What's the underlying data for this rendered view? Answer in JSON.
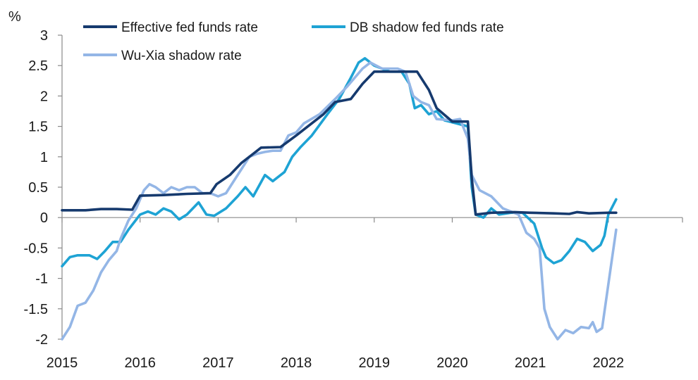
{
  "chart_data": {
    "type": "line",
    "title": "",
    "xlabel": "",
    "ylabel": "%",
    "xlim": [
      2015.0,
      2022.95
    ],
    "ylim": [
      -2,
      3
    ],
    "x_ticks": [
      "2015",
      "2016",
      "2017",
      "2018",
      "2019",
      "2020",
      "2021",
      "2022"
    ],
    "y_ticks": [
      "3",
      "2.5",
      "2",
      "1.5",
      "1",
      "0.5",
      "0",
      "-0.5",
      "-1",
      "-1.5",
      "-2"
    ],
    "grid": false,
    "legend_position": "top",
    "series": [
      {
        "name": "Effective fed funds rate",
        "color": "#163a6e",
        "points": [
          [
            2015.0,
            0.12
          ],
          [
            2015.3,
            0.12
          ],
          [
            2015.5,
            0.14
          ],
          [
            2015.7,
            0.14
          ],
          [
            2015.9,
            0.13
          ],
          [
            2016.0,
            0.36
          ],
          [
            2016.3,
            0.37
          ],
          [
            2016.6,
            0.39
          ],
          [
            2016.9,
            0.4
          ],
          [
            2016.98,
            0.55
          ],
          [
            2017.15,
            0.7
          ],
          [
            2017.3,
            0.9
          ],
          [
            2017.45,
            1.05
          ],
          [
            2017.55,
            1.15
          ],
          [
            2017.8,
            1.16
          ],
          [
            2018.0,
            1.35
          ],
          [
            2018.15,
            1.5
          ],
          [
            2018.35,
            1.7
          ],
          [
            2018.5,
            1.9
          ],
          [
            2018.7,
            1.95
          ],
          [
            2018.85,
            2.2
          ],
          [
            2019.0,
            2.4
          ],
          [
            2019.2,
            2.4
          ],
          [
            2019.55,
            2.4
          ],
          [
            2019.7,
            2.1
          ],
          [
            2019.8,
            1.8
          ],
          [
            2020.0,
            1.58
          ],
          [
            2020.2,
            1.58
          ],
          [
            2020.25,
            0.65
          ],
          [
            2020.3,
            0.05
          ],
          [
            2020.5,
            0.08
          ],
          [
            2020.8,
            0.09
          ],
          [
            2021.0,
            0.08
          ],
          [
            2021.3,
            0.07
          ],
          [
            2021.5,
            0.06
          ],
          [
            2021.6,
            0.09
          ],
          [
            2021.75,
            0.07
          ],
          [
            2022.0,
            0.08
          ],
          [
            2022.1,
            0.08
          ]
        ]
      },
      {
        "name": "DB shadow fed funds rate",
        "color": "#1ea3d4",
        "points": [
          [
            2015.0,
            -0.8
          ],
          [
            2015.1,
            -0.65
          ],
          [
            2015.2,
            -0.62
          ],
          [
            2015.35,
            -0.62
          ],
          [
            2015.45,
            -0.68
          ],
          [
            2015.55,
            -0.55
          ],
          [
            2015.65,
            -0.4
          ],
          [
            2015.75,
            -0.4
          ],
          [
            2015.85,
            -0.2
          ],
          [
            2016.0,
            0.05
          ],
          [
            2016.1,
            0.1
          ],
          [
            2016.2,
            0.05
          ],
          [
            2016.3,
            0.15
          ],
          [
            2016.4,
            0.1
          ],
          [
            2016.5,
            -0.03
          ],
          [
            2016.6,
            0.05
          ],
          [
            2016.75,
            0.25
          ],
          [
            2016.85,
            0.05
          ],
          [
            2016.95,
            0.03
          ],
          [
            2017.1,
            0.15
          ],
          [
            2017.25,
            0.35
          ],
          [
            2017.35,
            0.5
          ],
          [
            2017.45,
            0.35
          ],
          [
            2017.6,
            0.7
          ],
          [
            2017.7,
            0.6
          ],
          [
            2017.85,
            0.75
          ],
          [
            2017.95,
            1.0
          ],
          [
            2018.05,
            1.15
          ],
          [
            2018.2,
            1.35
          ],
          [
            2018.4,
            1.7
          ],
          [
            2018.55,
            1.95
          ],
          [
            2018.7,
            2.3
          ],
          [
            2018.8,
            2.55
          ],
          [
            2018.88,
            2.62
          ],
          [
            2019.0,
            2.5
          ],
          [
            2019.2,
            2.4
          ],
          [
            2019.35,
            2.4
          ],
          [
            2019.45,
            2.2
          ],
          [
            2019.52,
            1.8
          ],
          [
            2019.6,
            1.85
          ],
          [
            2019.7,
            1.7
          ],
          [
            2019.8,
            1.75
          ],
          [
            2019.9,
            1.6
          ],
          [
            2020.05,
            1.55
          ],
          [
            2020.2,
            1.5
          ],
          [
            2020.25,
            0.5
          ],
          [
            2020.3,
            0.05
          ],
          [
            2020.4,
            0.0
          ],
          [
            2020.5,
            0.15
          ],
          [
            2020.6,
            0.05
          ],
          [
            2020.75,
            0.08
          ],
          [
            2020.9,
            0.08
          ],
          [
            2021.05,
            -0.1
          ],
          [
            2021.15,
            -0.5
          ],
          [
            2021.2,
            -0.65
          ],
          [
            2021.3,
            -0.75
          ],
          [
            2021.4,
            -0.7
          ],
          [
            2021.5,
            -0.55
          ],
          [
            2021.6,
            -0.35
          ],
          [
            2021.7,
            -0.4
          ],
          [
            2021.8,
            -0.55
          ],
          [
            2021.9,
            -0.45
          ],
          [
            2021.95,
            -0.3
          ],
          [
            2022.0,
            0.05
          ],
          [
            2022.1,
            0.3
          ]
        ]
      },
      {
        "name": "Wu-Xia shadow rate",
        "color": "#94b6e6",
        "points": [
          [
            2015.0,
            -2.0
          ],
          [
            2015.1,
            -1.8
          ],
          [
            2015.2,
            -1.45
          ],
          [
            2015.3,
            -1.4
          ],
          [
            2015.4,
            -1.2
          ],
          [
            2015.5,
            -0.9
          ],
          [
            2015.6,
            -0.7
          ],
          [
            2015.7,
            -0.55
          ],
          [
            2015.75,
            -0.35
          ],
          [
            2015.85,
            -0.05
          ],
          [
            2015.95,
            0.15
          ],
          [
            2016.05,
            0.45
          ],
          [
            2016.12,
            0.55
          ],
          [
            2016.2,
            0.5
          ],
          [
            2016.3,
            0.4
          ],
          [
            2016.4,
            0.5
          ],
          [
            2016.5,
            0.45
          ],
          [
            2016.6,
            0.5
          ],
          [
            2016.7,
            0.5
          ],
          [
            2016.8,
            0.4
          ],
          [
            2016.9,
            0.4
          ],
          [
            2017.0,
            0.35
          ],
          [
            2017.1,
            0.4
          ],
          [
            2017.2,
            0.6
          ],
          [
            2017.3,
            0.8
          ],
          [
            2017.4,
            1.0
          ],
          [
            2017.5,
            1.05
          ],
          [
            2017.6,
            1.08
          ],
          [
            2017.7,
            1.1
          ],
          [
            2017.8,
            1.1
          ],
          [
            2017.9,
            1.35
          ],
          [
            2018.0,
            1.4
          ],
          [
            2018.1,
            1.55
          ],
          [
            2018.3,
            1.7
          ],
          [
            2018.5,
            1.95
          ],
          [
            2018.65,
            2.15
          ],
          [
            2018.75,
            2.3
          ],
          [
            2018.85,
            2.45
          ],
          [
            2018.95,
            2.55
          ],
          [
            2019.1,
            2.45
          ],
          [
            2019.3,
            2.45
          ],
          [
            2019.4,
            2.4
          ],
          [
            2019.5,
            2.0
          ],
          [
            2019.6,
            1.9
          ],
          [
            2019.7,
            1.85
          ],
          [
            2019.8,
            1.62
          ],
          [
            2020.0,
            1.6
          ],
          [
            2020.1,
            1.62
          ],
          [
            2020.2,
            1.3
          ],
          [
            2020.25,
            0.7
          ],
          [
            2020.35,
            0.45
          ],
          [
            2020.5,
            0.35
          ],
          [
            2020.65,
            0.15
          ],
          [
            2020.75,
            0.1
          ],
          [
            2020.85,
            0.05
          ],
          [
            2020.95,
            -0.25
          ],
          [
            2021.05,
            -0.35
          ],
          [
            2021.12,
            -0.5
          ],
          [
            2021.18,
            -1.5
          ],
          [
            2021.25,
            -1.8
          ],
          [
            2021.35,
            -2.0
          ],
          [
            2021.45,
            -1.85
          ],
          [
            2021.55,
            -1.9
          ],
          [
            2021.65,
            -1.8
          ],
          [
            2021.75,
            -1.82
          ],
          [
            2021.8,
            -1.72
          ],
          [
            2021.85,
            -1.88
          ],
          [
            2021.92,
            -1.82
          ],
          [
            2022.0,
            -1.1
          ],
          [
            2022.1,
            -0.2
          ]
        ]
      }
    ]
  }
}
